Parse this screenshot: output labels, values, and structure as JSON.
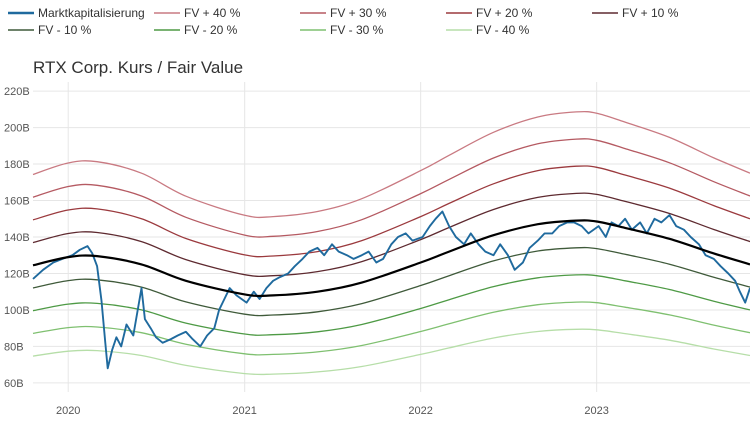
{
  "chart_data": {
    "type": "line",
    "title": "RTX Corp.    Kurs / Fair Value",
    "xlabel": "",
    "ylabel": "",
    "x_range": [
      "2019-10-20",
      "2023-11-15"
    ],
    "ylim": [
      55,
      225
    ],
    "grid": true,
    "legend_placement": "top",
    "x_ticks": [
      {
        "label": "2020",
        "date": "2020-01-01"
      },
      {
        "label": "2021",
        "date": "2021-01-01"
      },
      {
        "label": "2022",
        "date": "2022-01-01"
      },
      {
        "label": "2023",
        "date": "2023-01-01"
      }
    ],
    "y_ticks": [
      {
        "label": "60B",
        "value": 60
      },
      {
        "label": "80B",
        "value": 80
      },
      {
        "label": "100B",
        "value": 100
      },
      {
        "label": "120B",
        "value": 120
      },
      {
        "label": "140B",
        "value": 140
      },
      {
        "label": "160B",
        "value": 160
      },
      {
        "label": "180B",
        "value": 180
      },
      {
        "label": "200B",
        "value": 200
      },
      {
        "label": "220B",
        "value": 220
      }
    ],
    "fair_value": {
      "color": "#000000",
      "x": [
        "2019-10-20",
        "2020-01-01",
        "2020-03-01",
        "2020-06-01",
        "2020-09-01",
        "2021-01-01",
        "2021-03-01",
        "2021-06-01",
        "2021-09-01",
        "2022-01-01",
        "2022-03-01",
        "2022-06-01",
        "2022-09-01",
        "2022-11-20",
        "2023-01-01",
        "2023-03-01",
        "2023-06-01",
        "2023-09-01",
        "2023-11-15"
      ],
      "values": [
        124.5,
        129,
        129.5,
        125,
        116,
        108.5,
        108,
        110,
        115,
        126,
        132,
        141,
        147,
        149,
        148.5,
        145,
        139,
        131,
        125
      ]
    },
    "series": [
      {
        "name": "Marktkapitalisierung",
        "color": "#1f6a9e",
        "factor": null
      },
      {
        "name": "FV + 40 %",
        "color": "#c97a82",
        "factor": 1.4
      },
      {
        "name": "FV + 30 %",
        "color": "#b55a62",
        "factor": 1.3
      },
      {
        "name": "FV + 20 %",
        "color": "#9b3a3e",
        "factor": 1.2
      },
      {
        "name": "FV + 10 %",
        "color": "#5e2a30",
        "factor": 1.1
      },
      {
        "name": "FV - 10 %",
        "color": "#3f5a3a",
        "factor": 0.9
      },
      {
        "name": "FV - 20 %",
        "color": "#4e9a45",
        "factor": 0.8
      },
      {
        "name": "FV - 30 %",
        "color": "#7fc070",
        "factor": 0.7
      },
      {
        "name": "FV - 40 %",
        "color": "#b6dea8",
        "factor": 0.6
      }
    ],
    "market_cap": {
      "x": [
        "2019-10-20",
        "2019-11-10",
        "2019-12-01",
        "2019-12-20",
        "2020-01-10",
        "2020-01-25",
        "2020-02-10",
        "2020-02-20",
        "2020-03-01",
        "2020-03-10",
        "2020-03-18",
        "2020-03-23",
        "2020-04-01",
        "2020-04-10",
        "2020-04-20",
        "2020-05-01",
        "2020-05-15",
        "2020-06-01",
        "2020-06-08",
        "2020-06-20",
        "2020-07-01",
        "2020-07-15",
        "2020-08-01",
        "2020-08-15",
        "2020-09-01",
        "2020-09-15",
        "2020-10-01",
        "2020-10-15",
        "2020-10-30",
        "2020-11-09",
        "2020-11-20",
        "2020-12-01",
        "2020-12-15",
        "2021-01-05",
        "2021-01-20",
        "2021-02-01",
        "2021-02-15",
        "2021-03-01",
        "2021-03-15",
        "2021-04-01",
        "2021-04-15",
        "2021-05-01",
        "2021-05-15",
        "2021-06-01",
        "2021-06-15",
        "2021-07-01",
        "2021-07-15",
        "2021-08-01",
        "2021-08-15",
        "2021-09-01",
        "2021-09-15",
        "2021-10-01",
        "2021-10-15",
        "2021-11-01",
        "2021-11-15",
        "2021-12-01",
        "2021-12-15",
        "2022-01-05",
        "2022-01-20",
        "2022-02-01",
        "2022-02-15",
        "2022-03-01",
        "2022-03-15",
        "2022-04-01",
        "2022-04-15",
        "2022-05-01",
        "2022-05-15",
        "2022-06-01",
        "2022-06-15",
        "2022-07-01",
        "2022-07-15",
        "2022-08-01",
        "2022-08-15",
        "2022-09-01",
        "2022-09-15",
        "2022-10-01",
        "2022-10-15",
        "2022-11-01",
        "2022-11-15",
        "2022-12-01",
        "2022-12-15",
        "2023-01-05",
        "2023-01-20",
        "2023-02-01",
        "2023-02-15",
        "2023-03-01",
        "2023-03-15",
        "2023-04-01",
        "2023-04-15",
        "2023-05-01",
        "2023-05-15",
        "2023-06-01",
        "2023-06-15",
        "2023-07-01",
        "2023-07-15",
        "2023-08-01",
        "2023-08-15",
        "2023-09-01",
        "2023-09-15",
        "2023-10-01",
        "2023-10-15",
        "2023-10-25",
        "2023-11-05",
        "2023-11-15"
      ],
      "values": [
        117,
        122,
        126,
        128,
        130,
        133,
        135,
        131,
        124,
        105,
        82,
        68,
        78,
        85,
        80,
        92,
        86,
        112,
        95,
        90,
        85,
        82,
        84,
        86,
        88,
        84,
        80,
        86,
        90,
        100,
        106,
        112,
        108,
        104,
        110,
        106,
        112,
        116,
        118,
        120,
        124,
        128,
        132,
        134,
        130,
        136,
        132,
        130,
        128,
        130,
        132,
        126,
        128,
        136,
        140,
        142,
        138,
        140,
        146,
        150,
        154,
        146,
        140,
        136,
        142,
        136,
        132,
        130,
        136,
        130,
        122,
        126,
        134,
        138,
        142,
        142,
        146,
        148,
        148,
        146,
        142,
        146,
        140,
        148,
        146,
        150,
        144,
        148,
        142,
        150,
        148,
        152,
        146,
        144,
        140,
        136,
        130,
        128,
        124,
        120,
        116,
        110,
        104,
        112
      ]
    }
  }
}
